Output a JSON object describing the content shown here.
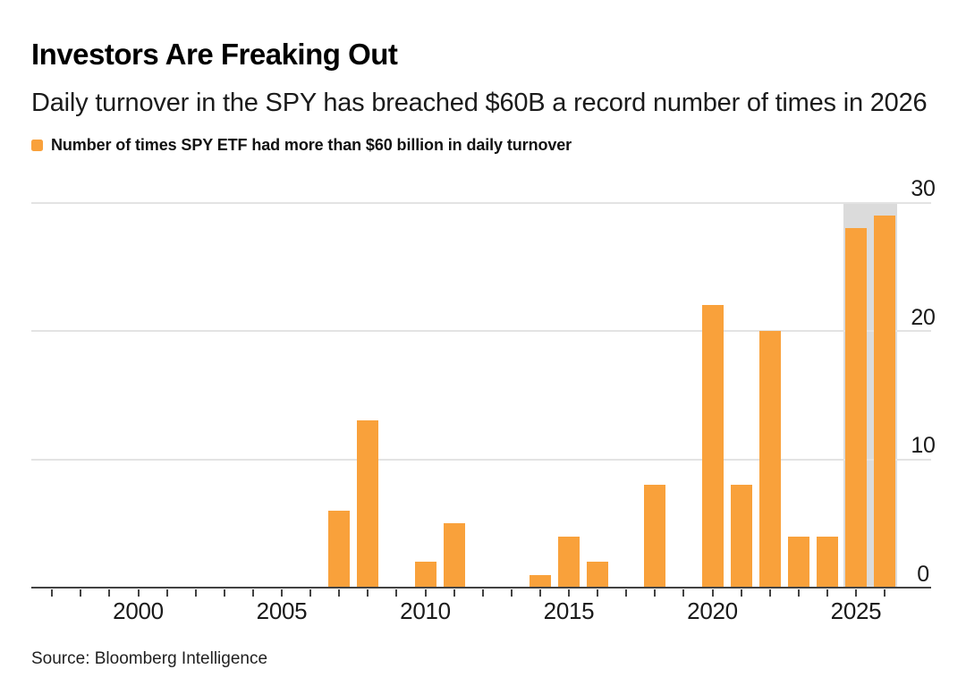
{
  "chart_data": {
    "type": "bar",
    "title": "Investors Are Freaking Out",
    "subtitle": "Daily turnover in the SPY has breached $60B a record number of times in 2026",
    "legend": "Number of times SPY ETF had more than $60 billion in daily turnover",
    "source": "Source: Bloomberg Intelligence",
    "xlabel": "",
    "ylabel": "",
    "categories": [
      1997,
      1998,
      1999,
      2000,
      2001,
      2002,
      2003,
      2004,
      2005,
      2006,
      2007,
      2008,
      2009,
      2010,
      2011,
      2012,
      2013,
      2014,
      2015,
      2016,
      2017,
      2018,
      2019,
      2020,
      2021,
      2022,
      2023,
      2024,
      2025,
      2026
    ],
    "values": [
      0,
      0,
      0,
      0,
      0,
      0,
      0,
      0,
      0,
      0,
      6,
      13,
      0,
      2,
      5,
      0,
      0,
      1,
      4,
      2,
      0,
      8,
      0,
      22,
      8,
      20,
      4,
      4,
      28,
      29
    ],
    "ylim": [
      0,
      30
    ],
    "yticks": [
      0,
      10,
      20,
      30
    ],
    "ytick_side": "right",
    "xtick_labels": [
      "2000",
      "2005",
      "2010",
      "2015",
      "2020",
      "2025"
    ],
    "grid": "horizontal",
    "legend_position": "top-left",
    "highlight": {
      "years": [
        2025,
        2026
      ],
      "band_range": [
        0,
        30
      ],
      "color": "#dbdbdb"
    },
    "colors": {
      "bar": "#f9a13b",
      "axis": "#424242",
      "gridline": "#e3e3e3",
      "text": "#1a1a1a",
      "title": "#000000"
    }
  }
}
